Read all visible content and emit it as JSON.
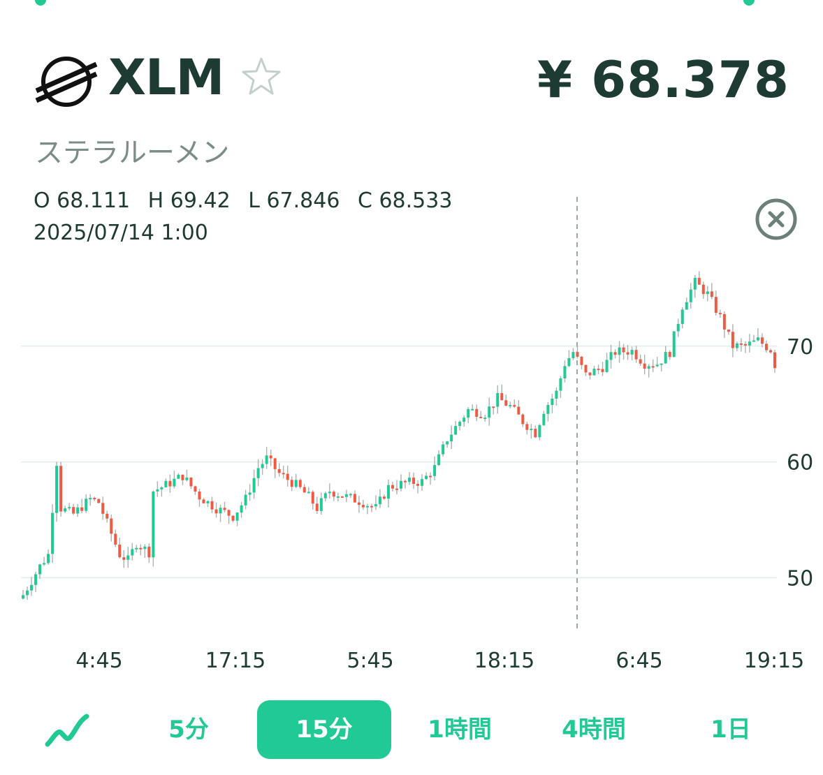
{
  "coin": {
    "symbol": "XLM",
    "name": "ステラルーメン",
    "price": "¥ 68.378",
    "logo_icon": "stellar-logo-icon",
    "favorite_icon": "star-outline-icon"
  },
  "ohlc": {
    "open": "O 68.111",
    "high": "H 69.42",
    "low": "L 67.846",
    "close": "C 68.533",
    "datetime": "2025/07/14 1:00"
  },
  "colors": {
    "up": "#21c995",
    "down": "#ef5a43",
    "text": "#1d3a33",
    "accent": "#21c995",
    "grid": "#dfeee9"
  },
  "tabs": {
    "chart_type_icon": "line-chart-icon",
    "items": [
      {
        "label": "5分",
        "active": false
      },
      {
        "label": "15分",
        "active": true
      },
      {
        "label": "1時間",
        "active": false
      },
      {
        "label": "4時間",
        "active": false
      },
      {
        "label": "1日",
        "active": false
      }
    ]
  },
  "chart_data": {
    "type": "candlestick",
    "y_ticks": [
      "50",
      "60",
      "70"
    ],
    "x_ticks": [
      "4:45",
      "17:15",
      "5:45",
      "18:15",
      "6:45",
      "19:15"
    ],
    "ylim": [
      45.5,
      80
    ],
    "grid": true,
    "crosshair_time": "2025/07/14 1:00",
    "close_path": [
      [
        0,
        48.5
      ],
      [
        4,
        51
      ],
      [
        6,
        52
      ],
      [
        8,
        60
      ],
      [
        9,
        56
      ],
      [
        12,
        55.5
      ],
      [
        16,
        56.8
      ],
      [
        18,
        56.5
      ],
      [
        23,
        52
      ],
      [
        25,
        51.5
      ],
      [
        27,
        53
      ],
      [
        30,
        52.2
      ],
      [
        31,
        57.5
      ],
      [
        34,
        58
      ],
      [
        38,
        58.8
      ],
      [
        42,
        57
      ],
      [
        46,
        56
      ],
      [
        50,
        55.3
      ],
      [
        53,
        56.8
      ],
      [
        56,
        59.5
      ],
      [
        58,
        60.3
      ],
      [
        61,
        59
      ],
      [
        65,
        58
      ],
      [
        68,
        57
      ],
      [
        70,
        56
      ],
      [
        73,
        57.5
      ],
      [
        77,
        57
      ],
      [
        81,
        56.5
      ],
      [
        84,
        56
      ],
      [
        87,
        57.8
      ],
      [
        91,
        58.2
      ],
      [
        95,
        58.3
      ],
      [
        98,
        59.5
      ],
      [
        101,
        62
      ],
      [
        104,
        63.5
      ],
      [
        106,
        64.5
      ],
      [
        110,
        64.2
      ],
      [
        113,
        65.5
      ],
      [
        116,
        64.8
      ],
      [
        119,
        63.5
      ],
      [
        122,
        62.5
      ],
      [
        124,
        64.5
      ],
      [
        127,
        66
      ],
      [
        129,
        68.5
      ],
      [
        131,
        69.5
      ],
      [
        134,
        67.5
      ],
      [
        138,
        68.2
      ],
      [
        141,
        69.5
      ],
      [
        145,
        69.6
      ],
      [
        148,
        68.5
      ],
      [
        151,
        68.5
      ],
      [
        154,
        69.5
      ],
      [
        157,
        73.5
      ],
      [
        160,
        75.5
      ],
      [
        163,
        74.5
      ],
      [
        166,
        72.5
      ],
      [
        169,
        70
      ],
      [
        172,
        70
      ],
      [
        175,
        70.5
      ],
      [
        178,
        69.7
      ],
      [
        179,
        68.4
      ]
    ]
  }
}
